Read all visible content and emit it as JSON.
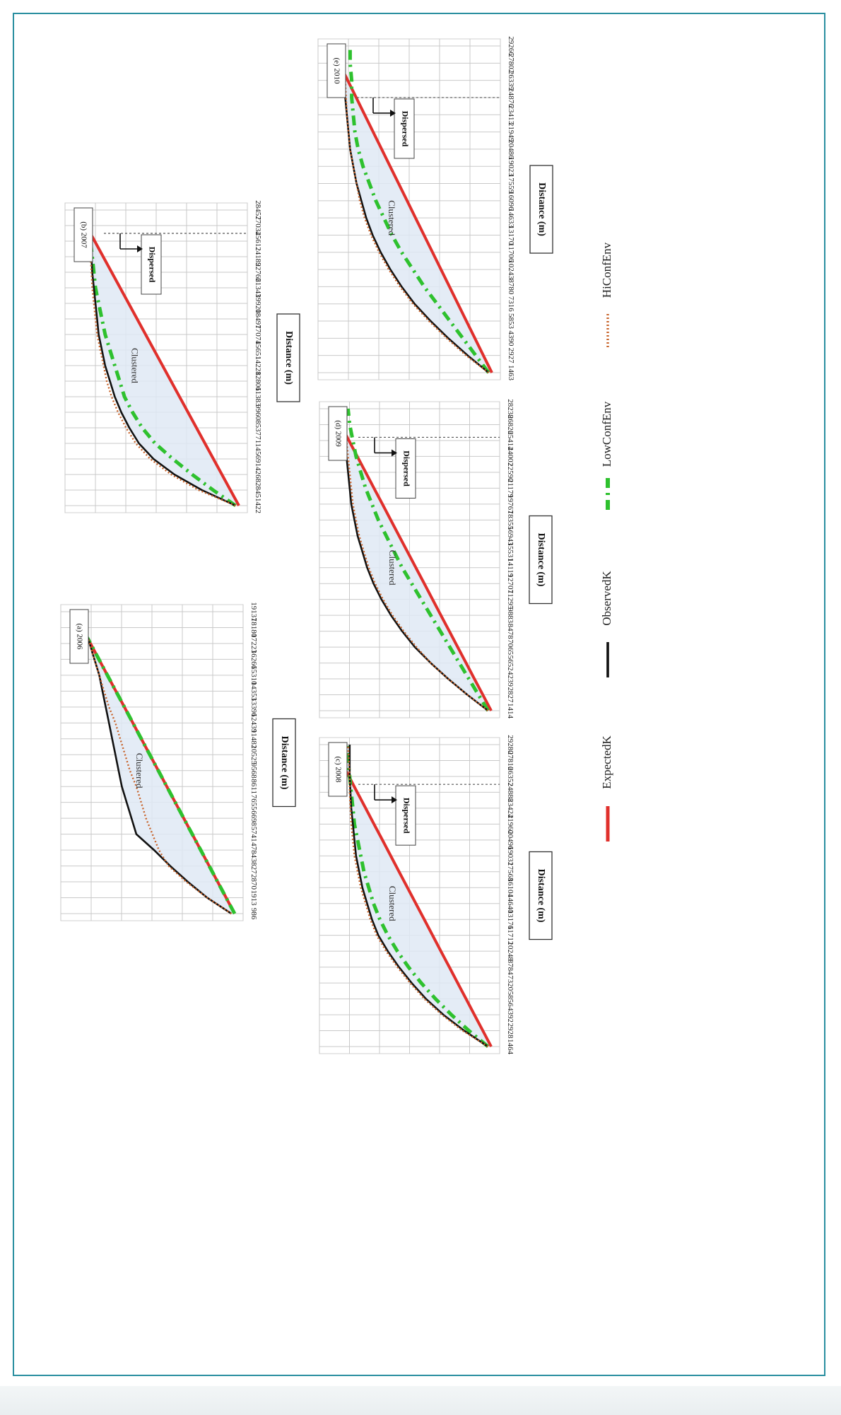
{
  "colors": {
    "expected": "#e0302c",
    "observed": "#111111",
    "low_conf": "#2ec12e",
    "hi_conf": "#c8632a",
    "fill": "#dfe9f4",
    "grid": "#c9c9c9",
    "frame": "#2a8fa0"
  },
  "legend": {
    "items": [
      {
        "key": "expected",
        "label": "ExpectedK"
      },
      {
        "key": "observed",
        "label": "ObservedK"
      },
      {
        "key": "low_conf",
        "label": "LowConfEnv"
      },
      {
        "key": "hi_conf",
        "label": "HiConfEnv"
      }
    ]
  },
  "chart_data": [
    {
      "type": "line",
      "panel_label": "(a) 2006",
      "xlabel": "Distance (m)",
      "x_ticks": [
        "986",
        "1913",
        "2870",
        "3827",
        "4784",
        "5741",
        "6698",
        "7655",
        "8611",
        "9568",
        "10525",
        "11482",
        "12439",
        "13396",
        "14353",
        "15310",
        "16266",
        "17223",
        "18180",
        "19137"
      ],
      "region_labels": [
        "Clustered"
      ],
      "dispersed_at": null,
      "series": [
        {
          "key": "expected",
          "values": [
            0.0,
            0.0526,
            0.1053,
            0.1579,
            0.2105,
            0.2632,
            0.3158,
            0.3684,
            0.4211,
            0.4737,
            0.5263,
            0.5789,
            0.6316,
            0.6842,
            0.7368,
            0.7895,
            0.8421,
            0.8947,
            0.9474,
            1.0
          ]
        },
        {
          "key": "low_conf",
          "values": [
            0.0,
            0.0526,
            0.1053,
            0.1579,
            0.2105,
            0.2632,
            0.3158,
            0.3684,
            0.4211,
            0.4737,
            0.5263,
            0.5789,
            0.6316,
            0.6842,
            0.7368,
            0.7895,
            0.8421,
            0.8947,
            0.9474,
            1.0
          ]
        },
        {
          "key": "observed",
          "values": [
            0.02,
            0.17,
            0.29,
            0.4,
            0.5,
            0.61,
            0.64,
            0.67,
            0.7,
            0.72,
            0.74,
            0.76,
            0.78,
            0.8,
            0.82,
            0.84,
            0.87,
            0.9,
            0.93,
            0.96
          ]
        },
        {
          "key": "hi_conf",
          "values": [
            0.02,
            0.17,
            0.3,
            0.41,
            0.47,
            0.51,
            0.55,
            0.58,
            0.61,
            0.65,
            0.68,
            0.71,
            0.74,
            0.78,
            0.81,
            0.84,
            0.87,
            0.9,
            0.93,
            0.95
          ]
        }
      ]
    },
    {
      "type": "line",
      "panel_label": "(b) 2007",
      "xlabel": "Distance (m)",
      "x_ticks": [
        "1422",
        "2845",
        "4268",
        "5691",
        "7114",
        "8537",
        "9960",
        "11383",
        "12806",
        "14228",
        "15651",
        "17074",
        "18497",
        "19920",
        "21343",
        "22766",
        "24189",
        "25612",
        "27034",
        "28457"
      ],
      "region_labels": [
        "Clustered",
        "Dispersed"
      ],
      "dispersed_at": 17.5,
      "series": [
        {
          "key": "expected",
          "values": [
            0.0,
            0.0526,
            0.1053,
            0.1579,
            0.2105,
            0.2632,
            0.3158,
            0.3684,
            0.4211,
            0.4737,
            0.5263,
            0.5789,
            0.6316,
            0.6842,
            0.7368,
            0.7895,
            0.8421,
            0.8947,
            0.9474,
            1.0
          ]
        },
        {
          "key": "low_conf",
          "values": [
            0.02,
            0.16,
            0.29,
            0.41,
            0.52,
            0.6,
            0.66,
            0.71,
            0.74,
            0.77,
            0.8,
            0.83,
            0.85,
            0.87,
            0.89,
            0.9,
            0.91,
            0.92,
            0.92,
            0.93
          ]
        },
        {
          "key": "observed",
          "values": [
            0.02,
            0.23,
            0.4,
            0.53,
            0.62,
            0.68,
            0.73,
            0.77,
            0.8,
            0.83,
            0.85,
            0.87,
            0.88,
            0.89,
            0.9,
            0.91,
            0.915,
            0.92,
            0.92,
            0.925
          ]
        },
        {
          "key": "hi_conf",
          "values": [
            0.02,
            0.25,
            0.42,
            0.55,
            0.64,
            0.7,
            0.75,
            0.79,
            0.82,
            0.84,
            0.86,
            0.88,
            0.89,
            0.9,
            0.91,
            0.915,
            0.92,
            0.925,
            0.93,
            0.93
          ]
        }
      ]
    },
    {
      "type": "line",
      "panel_label": "(c) 2008",
      "xlabel": "Distance (m)",
      "x_ticks": [
        "1464",
        "2928",
        "4392",
        "5856",
        "7320",
        "8784",
        "10248",
        "11712",
        "13176",
        "14640",
        "16104",
        "17568",
        "19032",
        "20496",
        "21960",
        "23424",
        "24888",
        "26352",
        "27816",
        "29280"
      ],
      "region_labels": [
        "Clustered",
        "Dispersed"
      ],
      "dispersed_at": 16.5,
      "series": [
        {
          "key": "expected",
          "values": [
            0.0,
            0.0526,
            0.1053,
            0.1579,
            0.2105,
            0.2632,
            0.3158,
            0.3684,
            0.4211,
            0.4737,
            0.5263,
            0.5789,
            0.6316,
            0.6842,
            0.7368,
            0.7895,
            0.8421,
            0.8947,
            0.9474,
            1.0
          ]
        },
        {
          "key": "low_conf",
          "values": [
            0.02,
            0.14,
            0.25,
            0.35,
            0.44,
            0.52,
            0.59,
            0.65,
            0.7,
            0.74,
            0.77,
            0.8,
            0.82,
            0.84,
            0.86,
            0.87,
            0.88,
            0.89,
            0.9,
            0.9
          ]
        },
        {
          "key": "observed",
          "values": [
            0.02,
            0.17,
            0.3,
            0.41,
            0.5,
            0.58,
            0.65,
            0.71,
            0.75,
            0.78,
            0.81,
            0.83,
            0.85,
            0.86,
            0.87,
            0.88,
            0.885,
            0.89,
            0.89,
            0.89
          ]
        },
        {
          "key": "hi_conf",
          "values": [
            0.02,
            0.18,
            0.31,
            0.42,
            0.51,
            0.59,
            0.66,
            0.72,
            0.76,
            0.79,
            0.82,
            0.84,
            0.86,
            0.87,
            0.88,
            0.885,
            0.89,
            0.89,
            0.895,
            0.9
          ]
        }
      ]
    },
    {
      "type": "line",
      "panel_label": "(d) 2009",
      "xlabel": "Distance (m)",
      "x_ticks": [
        "1414",
        "2827",
        "4239",
        "5652",
        "7065",
        "8478",
        "9883",
        "11295",
        "12707",
        "14119",
        "15531",
        "16943",
        "18355",
        "19767",
        "21179",
        "22590",
        "24002",
        "25414",
        "26826",
        "28238"
      ],
      "region_labels": [
        "Clustered",
        "Dispersed"
      ],
      "dispersed_at": 17.2,
      "series": [
        {
          "key": "expected",
          "values": [
            0.0,
            0.0526,
            0.1053,
            0.1579,
            0.2105,
            0.2632,
            0.3158,
            0.3684,
            0.4211,
            0.4737,
            0.5263,
            0.5789,
            0.6316,
            0.6842,
            0.7368,
            0.7895,
            0.8421,
            0.8947,
            0.9474,
            1.0
          ]
        },
        {
          "key": "low_conf",
          "values": [
            0.02,
            0.08,
            0.14,
            0.2,
            0.26,
            0.32,
            0.38,
            0.44,
            0.5,
            0.56,
            0.61,
            0.66,
            0.71,
            0.75,
            0.79,
            0.82,
            0.85,
            0.87,
            0.89,
            0.9
          ]
        },
        {
          "key": "observed",
          "values": [
            0.02,
            0.15,
            0.27,
            0.38,
            0.48,
            0.56,
            0.63,
            0.69,
            0.74,
            0.78,
            0.81,
            0.84,
            0.86,
            0.88,
            0.89,
            0.9,
            0.91,
            0.92,
            0.92,
            0.925
          ]
        },
        {
          "key": "hi_conf",
          "values": [
            0.02,
            0.15,
            0.27,
            0.38,
            0.47,
            0.55,
            0.62,
            0.68,
            0.73,
            0.77,
            0.8,
            0.83,
            0.85,
            0.87,
            0.88,
            0.89,
            0.9,
            0.91,
            0.915,
            0.92
          ]
        }
      ]
    },
    {
      "type": "line",
      "panel_label": "(e) 2010",
      "xlabel": "Distance (m)",
      "x_ticks": [
        "1463",
        "2927",
        "4390",
        "5853",
        "7316",
        "8780",
        "10243",
        "11706",
        "13170",
        "14633",
        "16096",
        "17559",
        "19023",
        "20486",
        "21949",
        "23413",
        "24876",
        "26339",
        "27802",
        "29266"
      ],
      "region_labels": [
        "Clustered",
        "Dispersed"
      ],
      "dispersed_at": 16.0,
      "series": [
        {
          "key": "expected",
          "values": [
            0.0,
            0.0526,
            0.1053,
            0.1579,
            0.2105,
            0.2632,
            0.3158,
            0.3684,
            0.4211,
            0.4737,
            0.5263,
            0.5789,
            0.6316,
            0.6842,
            0.7368,
            0.7895,
            0.8421,
            0.8947,
            0.9474,
            1.0
          ]
        },
        {
          "key": "low_conf",
          "values": [
            0.02,
            0.1,
            0.18,
            0.26,
            0.34,
            0.42,
            0.49,
            0.56,
            0.62,
            0.67,
            0.72,
            0.76,
            0.8,
            0.83,
            0.85,
            0.86,
            0.87,
            0.87,
            0.88,
            0.88
          ]
        },
        {
          "key": "observed",
          "values": [
            0.02,
            0.15,
            0.27,
            0.38,
            0.48,
            0.56,
            0.63,
            0.69,
            0.74,
            0.78,
            0.81,
            0.84,
            0.86,
            0.88,
            0.89,
            0.9,
            0.91,
            0.92,
            0.92,
            0.925
          ]
        },
        {
          "key": "hi_conf",
          "values": [
            0.02,
            0.16,
            0.28,
            0.39,
            0.49,
            0.57,
            0.64,
            0.7,
            0.75,
            0.79,
            0.82,
            0.84,
            0.86,
            0.88,
            0.89,
            0.9,
            0.905,
            0.91,
            0.915,
            0.92
          ]
        }
      ]
    }
  ]
}
